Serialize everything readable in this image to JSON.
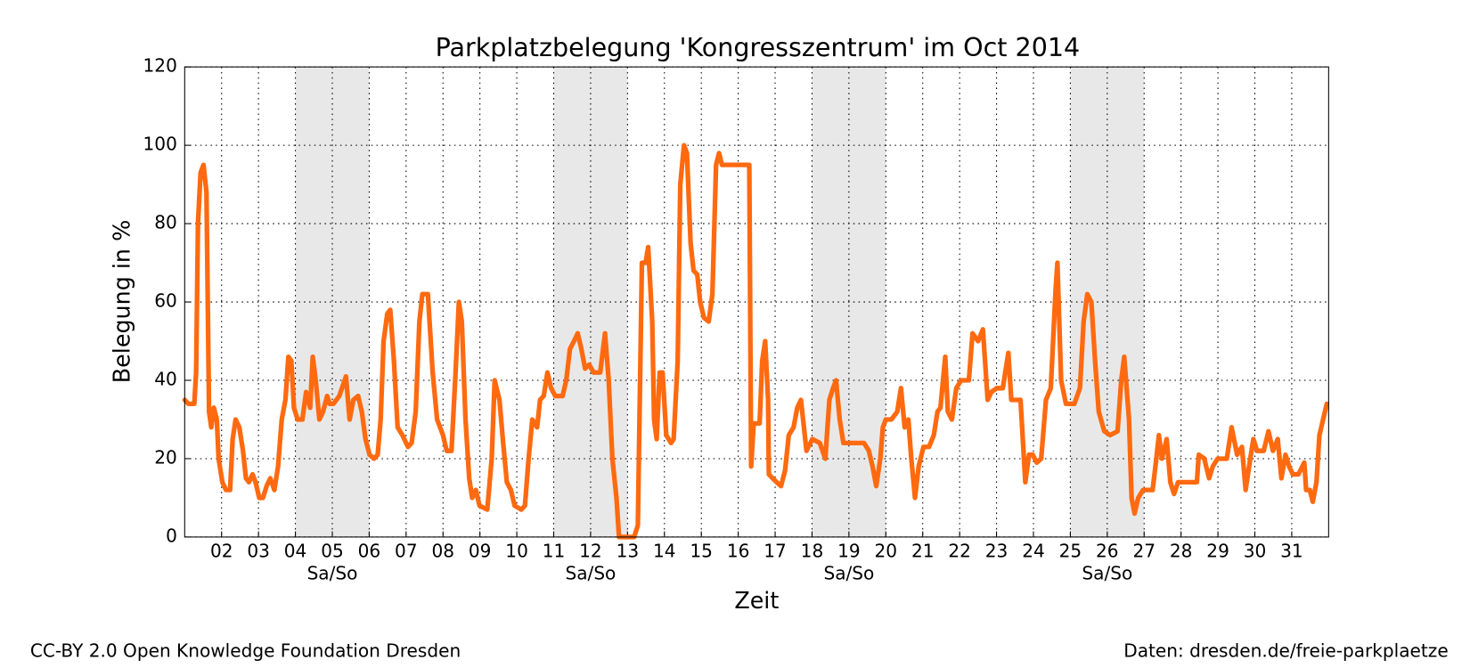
{
  "chart_data": {
    "type": "line",
    "title": "Parkplatzbelegung 'Kongresszentrum' im Oct 2014",
    "xlabel": "Zeit",
    "ylabel": "Belegung in %",
    "footer_left": "CC-BY 2.0 Open Knowledge Foundation Dresden",
    "footer_right": "Daten: dresden.de/freie-parkplaetze",
    "xlim": [
      1,
      32
    ],
    "ylim": [
      0,
      120
    ],
    "xticks": [
      {
        "value": 2,
        "label": "02"
      },
      {
        "value": 3,
        "label": "03"
      },
      {
        "value": 4,
        "label": "04"
      },
      {
        "value": 5,
        "label": "05"
      },
      {
        "value": 6,
        "label": "06"
      },
      {
        "value": 7,
        "label": "07"
      },
      {
        "value": 8,
        "label": "08"
      },
      {
        "value": 9,
        "label": "09"
      },
      10,
      11,
      12,
      13,
      14,
      15,
      16,
      17,
      18,
      19,
      20,
      21,
      22,
      23,
      24,
      25,
      26,
      27,
      28,
      29,
      30,
      31
    ],
    "yticks": [
      0,
      20,
      40,
      60,
      80,
      100,
      120
    ],
    "grid": true,
    "weekends": [
      {
        "start": 4,
        "end": 6,
        "label": "Sa/So"
      },
      {
        "start": 11,
        "end": 13,
        "label": "Sa/So"
      },
      {
        "start": 18,
        "end": 20,
        "label": "Sa/So"
      },
      {
        "start": 25,
        "end": 27,
        "label": "Sa/So"
      }
    ],
    "weekend_color": "#e8e8e8",
    "series": [
      {
        "color": "#ff6a10",
        "x": [
          1.0,
          1.1,
          1.26,
          1.31,
          1.36,
          1.43,
          1.51,
          1.59,
          1.66,
          1.72,
          1.79,
          1.87,
          1.92,
          2.02,
          2.12,
          2.23,
          2.3,
          2.38,
          2.48,
          2.58,
          2.66,
          2.74,
          2.84,
          2.92,
          3.02,
          3.12,
          3.22,
          3.32,
          3.43,
          3.53,
          3.63,
          3.73,
          3.81,
          3.89,
          3.96,
          4.06,
          4.19,
          4.29,
          4.4,
          4.47,
          4.55,
          4.65,
          4.75,
          4.86,
          4.93,
          5.03,
          5.19,
          5.37,
          5.47,
          5.57,
          5.7,
          5.8,
          5.9,
          6.01,
          6.13,
          6.23,
          6.31,
          6.39,
          6.49,
          6.57,
          6.67,
          6.77,
          6.9,
          7.05,
          7.15,
          7.26,
          7.36,
          7.44,
          7.59,
          7.72,
          7.84,
          8.0,
          8.1,
          8.23,
          8.33,
          8.43,
          8.51,
          8.61,
          8.71,
          8.79,
          8.89,
          8.99,
          9.2,
          9.32,
          9.4,
          9.53,
          9.63,
          9.73,
          9.84,
          9.94,
          10.12,
          10.22,
          10.32,
          10.42,
          10.55,
          10.63,
          10.73,
          10.83,
          10.93,
          11.04,
          11.24,
          11.34,
          11.44,
          11.55,
          11.65,
          11.75,
          11.85,
          11.96,
          12.08,
          12.26,
          12.39,
          12.49,
          12.59,
          12.7,
          12.77,
          12.95,
          13.18,
          13.28,
          13.39,
          13.49,
          13.56,
          13.67,
          13.72,
          13.79,
          13.87,
          13.95,
          14.05,
          14.18,
          14.25,
          14.36,
          14.43,
          14.53,
          14.61,
          14.71,
          14.79,
          14.89,
          14.97,
          15.07,
          15.2,
          15.3,
          15.4,
          15.48,
          15.56,
          16.3,
          16.35,
          16.42,
          16.58,
          16.65,
          16.73,
          16.81,
          16.83,
          16.93,
          17.04,
          17.16,
          17.27,
          17.37,
          17.5,
          17.6,
          17.7,
          17.85,
          18.01,
          18.21,
          18.36,
          18.47,
          18.57,
          18.65,
          18.75,
          18.85,
          19.41,
          19.54,
          19.64,
          19.74,
          19.85,
          19.92,
          20.0,
          20.15,
          20.31,
          20.41,
          20.51,
          20.61,
          20.69,
          20.79,
          20.89,
          21.02,
          21.17,
          21.3,
          21.4,
          21.48,
          21.61,
          21.68,
          21.79,
          21.91,
          22.04,
          22.25,
          22.35,
          22.5,
          22.63,
          22.76,
          22.86,
          23.01,
          23.17,
          23.32,
          23.4,
          23.5,
          23.65,
          23.78,
          23.88,
          23.98,
          24.09,
          24.21,
          24.34,
          24.47,
          24.6,
          24.65,
          24.75,
          24.88,
          25.11,
          25.26,
          25.36,
          25.46,
          25.57,
          25.67,
          25.77,
          25.92,
          26.08,
          26.28,
          26.38,
          26.46,
          26.59,
          26.66,
          26.74,
          26.84,
          26.97,
          27.23,
          27.33,
          27.4,
          27.48,
          27.61,
          27.71,
          27.81,
          27.92,
          28.43,
          28.48,
          28.63,
          28.76,
          28.86,
          28.99,
          29.24,
          29.37,
          29.52,
          29.65,
          29.75,
          29.86,
          29.96,
          30.06,
          30.24,
          30.37,
          30.49,
          30.62,
          30.72,
          30.83,
          30.93,
          31.03,
          31.18,
          31.34,
          31.39,
          31.49,
          31.57,
          31.67,
          31.75,
          31.85,
          31.95
        ],
        "values": [
          35,
          34,
          34,
          42,
          80,
          93,
          95,
          88,
          32,
          28,
          33,
          30,
          20,
          14,
          12,
          12,
          25,
          30,
          28,
          22,
          15,
          14,
          16,
          14,
          10,
          10,
          13,
          15,
          12,
          18,
          30,
          35,
          46,
          45,
          33,
          30,
          30,
          37,
          33,
          46,
          40,
          30,
          32,
          36,
          34,
          34,
          36,
          41,
          30,
          35,
          36,
          32,
          25,
          21,
          20,
          21,
          30,
          50,
          57,
          58,
          45,
          28,
          26,
          23,
          24,
          32,
          55,
          62,
          62,
          42,
          30,
          26,
          22,
          22,
          40,
          60,
          55,
          30,
          15,
          10,
          12,
          8,
          7,
          20,
          40,
          35,
          24,
          14,
          12,
          8,
          7,
          8,
          20,
          30,
          28,
          35,
          36,
          42,
          38,
          36,
          36,
          40,
          48,
          50,
          52,
          48,
          43,
          44,
          42,
          42,
          52,
          40,
          20,
          10,
          0,
          0,
          0,
          3,
          70,
          70,
          74,
          55,
          30,
          25,
          42,
          42,
          26,
          24,
          25,
          45,
          90,
          100,
          98,
          75,
          68,
          67,
          60,
          56,
          55,
          62,
          95,
          98,
          95,
          95,
          18,
          29,
          29,
          45,
          50,
          35,
          16,
          15,
          14,
          13,
          17,
          26,
          28,
          33,
          35,
          22,
          25,
          24,
          20,
          35,
          38,
          40,
          30,
          24,
          24,
          22,
          18,
          13,
          20,
          28,
          30,
          30,
          32,
          38,
          28,
          30,
          20,
          10,
          18,
          23,
          23,
          26,
          32,
          33,
          46,
          32,
          30,
          38,
          40,
          40,
          52,
          50,
          53,
          35,
          37,
          38,
          38,
          47,
          35,
          35,
          35,
          14,
          21,
          21,
          19,
          20,
          35,
          38,
          63,
          70,
          40,
          34,
          34,
          38,
          55,
          62,
          60,
          45,
          32,
          27,
          26,
          27,
          40,
          46,
          30,
          10,
          6,
          10,
          12,
          12,
          20,
          26,
          20,
          25,
          14,
          11,
          14,
          14,
          21,
          20,
          15,
          18,
          20,
          20,
          28,
          21,
          23,
          12,
          19,
          25,
          22,
          22,
          27,
          22,
          25,
          15,
          21,
          18,
          16,
          16,
          19,
          12,
          12,
          9,
          14,
          26,
          30,
          34
        ]
      }
    ]
  }
}
